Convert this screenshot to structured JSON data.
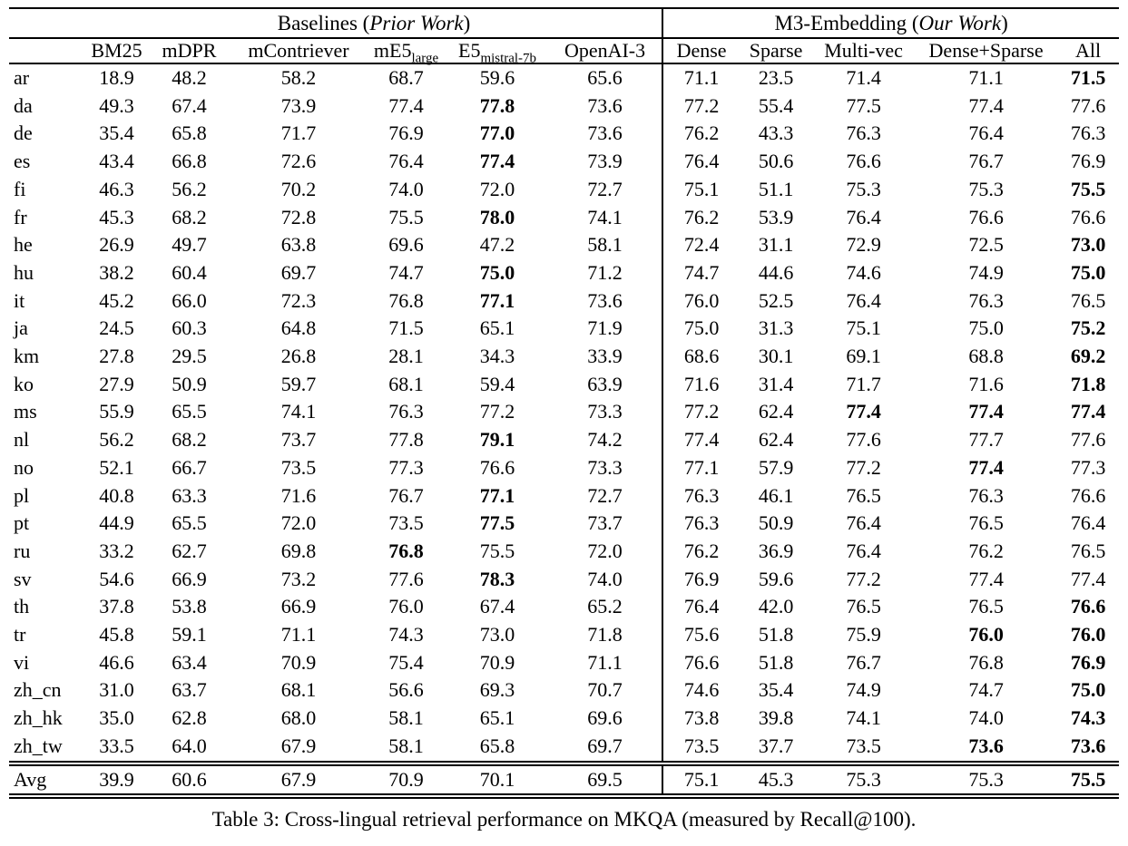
{
  "caption": "Table 3: Cross-lingual retrieval performance on MKQA (measured by Recall@100).",
  "table": {
    "group_headers": [
      {
        "prefix": "Baselines (",
        "italic": "Prior Work",
        "suffix": ")"
      },
      {
        "prefix": "M3-Embedding (",
        "italic": "Our Work",
        "suffix": ")"
      }
    ],
    "columns": [
      {
        "label": "BM25"
      },
      {
        "label": "mDPR"
      },
      {
        "label": "mContriever"
      },
      {
        "label": "mE5",
        "sub": "large"
      },
      {
        "label": "E5",
        "sub": "mistral-7b"
      },
      {
        "label": "OpenAI-3"
      },
      {
        "label": "Dense"
      },
      {
        "label": "Sparse"
      },
      {
        "label": "Multi-vec"
      },
      {
        "label": "Dense+Sparse"
      },
      {
        "label": "All"
      }
    ],
    "rows": [
      {
        "lang": "ar",
        "values": [
          "18.9",
          "48.2",
          "58.2",
          "68.7",
          "59.6",
          "65.6",
          "71.1",
          "23.5",
          "71.4",
          "71.1",
          "71.5"
        ],
        "bold": [
          10
        ]
      },
      {
        "lang": "da",
        "values": [
          "49.3",
          "67.4",
          "73.9",
          "77.4",
          "77.8",
          "73.6",
          "77.2",
          "55.4",
          "77.5",
          "77.4",
          "77.6"
        ],
        "bold": [
          4
        ]
      },
      {
        "lang": "de",
        "values": [
          "35.4",
          "65.8",
          "71.7",
          "76.9",
          "77.0",
          "73.6",
          "76.2",
          "43.3",
          "76.3",
          "76.4",
          "76.3"
        ],
        "bold": [
          4
        ]
      },
      {
        "lang": "es",
        "values": [
          "43.4",
          "66.8",
          "72.6",
          "76.4",
          "77.4",
          "73.9",
          "76.4",
          "50.6",
          "76.6",
          "76.7",
          "76.9"
        ],
        "bold": [
          4
        ]
      },
      {
        "lang": "fi",
        "values": [
          "46.3",
          "56.2",
          "70.2",
          "74.0",
          "72.0",
          "72.7",
          "75.1",
          "51.1",
          "75.3",
          "75.3",
          "75.5"
        ],
        "bold": [
          10
        ]
      },
      {
        "lang": "fr",
        "values": [
          "45.3",
          "68.2",
          "72.8",
          "75.5",
          "78.0",
          "74.1",
          "76.2",
          "53.9",
          "76.4",
          "76.6",
          "76.6"
        ],
        "bold": [
          4
        ]
      },
      {
        "lang": "he",
        "values": [
          "26.9",
          "49.7",
          "63.8",
          "69.6",
          "47.2",
          "58.1",
          "72.4",
          "31.1",
          "72.9",
          "72.5",
          "73.0"
        ],
        "bold": [
          10
        ]
      },
      {
        "lang": "hu",
        "values": [
          "38.2",
          "60.4",
          "69.7",
          "74.7",
          "75.0",
          "71.2",
          "74.7",
          "44.6",
          "74.6",
          "74.9",
          "75.0"
        ],
        "bold": [
          4,
          10
        ]
      },
      {
        "lang": "it",
        "values": [
          "45.2",
          "66.0",
          "72.3",
          "76.8",
          "77.1",
          "73.6",
          "76.0",
          "52.5",
          "76.4",
          "76.3",
          "76.5"
        ],
        "bold": [
          4
        ]
      },
      {
        "lang": "ja",
        "values": [
          "24.5",
          "60.3",
          "64.8",
          "71.5",
          "65.1",
          "71.9",
          "75.0",
          "31.3",
          "75.1",
          "75.0",
          "75.2"
        ],
        "bold": [
          10
        ]
      },
      {
        "lang": "km",
        "values": [
          "27.8",
          "29.5",
          "26.8",
          "28.1",
          "34.3",
          "33.9",
          "68.6",
          "30.1",
          "69.1",
          "68.8",
          "69.2"
        ],
        "bold": [
          10
        ]
      },
      {
        "lang": "ko",
        "values": [
          "27.9",
          "50.9",
          "59.7",
          "68.1",
          "59.4",
          "63.9",
          "71.6",
          "31.4",
          "71.7",
          "71.6",
          "71.8"
        ],
        "bold": [
          10
        ]
      },
      {
        "lang": "ms",
        "values": [
          "55.9",
          "65.5",
          "74.1",
          "76.3",
          "77.2",
          "73.3",
          "77.2",
          "62.4",
          "77.4",
          "77.4",
          "77.4"
        ],
        "bold": [
          8,
          9,
          10
        ]
      },
      {
        "lang": "nl",
        "values": [
          "56.2",
          "68.2",
          "73.7",
          "77.8",
          "79.1",
          "74.2",
          "77.4",
          "62.4",
          "77.6",
          "77.7",
          "77.6"
        ],
        "bold": [
          4
        ]
      },
      {
        "lang": "no",
        "values": [
          "52.1",
          "66.7",
          "73.5",
          "77.3",
          "76.6",
          "73.3",
          "77.1",
          "57.9",
          "77.2",
          "77.4",
          "77.3"
        ],
        "bold": [
          9
        ]
      },
      {
        "lang": "pl",
        "values": [
          "40.8",
          "63.3",
          "71.6",
          "76.7",
          "77.1",
          "72.7",
          "76.3",
          "46.1",
          "76.5",
          "76.3",
          "76.6"
        ],
        "bold": [
          4
        ]
      },
      {
        "lang": "pt",
        "values": [
          "44.9",
          "65.5",
          "72.0",
          "73.5",
          "77.5",
          "73.7",
          "76.3",
          "50.9",
          "76.4",
          "76.5",
          "76.4"
        ],
        "bold": [
          4
        ]
      },
      {
        "lang": "ru",
        "values": [
          "33.2",
          "62.7",
          "69.8",
          "76.8",
          "75.5",
          "72.0",
          "76.2",
          "36.9",
          "76.4",
          "76.2",
          "76.5"
        ],
        "bold": [
          3
        ]
      },
      {
        "lang": "sv",
        "values": [
          "54.6",
          "66.9",
          "73.2",
          "77.6",
          "78.3",
          "74.0",
          "76.9",
          "59.6",
          "77.2",
          "77.4",
          "77.4"
        ],
        "bold": [
          4
        ]
      },
      {
        "lang": "th",
        "values": [
          "37.8",
          "53.8",
          "66.9",
          "76.0",
          "67.4",
          "65.2",
          "76.4",
          "42.0",
          "76.5",
          "76.5",
          "76.6"
        ],
        "bold": [
          10
        ]
      },
      {
        "lang": "tr",
        "values": [
          "45.8",
          "59.1",
          "71.1",
          "74.3",
          "73.0",
          "71.8",
          "75.6",
          "51.8",
          "75.9",
          "76.0",
          "76.0"
        ],
        "bold": [
          9,
          10
        ]
      },
      {
        "lang": "vi",
        "values": [
          "46.6",
          "63.4",
          "70.9",
          "75.4",
          "70.9",
          "71.1",
          "76.6",
          "51.8",
          "76.7",
          "76.8",
          "76.9"
        ],
        "bold": [
          10
        ]
      },
      {
        "lang": "zh_cn",
        "values": [
          "31.0",
          "63.7",
          "68.1",
          "56.6",
          "69.3",
          "70.7",
          "74.6",
          "35.4",
          "74.9",
          "74.7",
          "75.0"
        ],
        "bold": [
          10
        ]
      },
      {
        "lang": "zh_hk",
        "values": [
          "35.0",
          "62.8",
          "68.0",
          "58.1",
          "65.1",
          "69.6",
          "73.8",
          "39.8",
          "74.1",
          "74.0",
          "74.3"
        ],
        "bold": [
          10
        ]
      },
      {
        "lang": "zh_tw",
        "values": [
          "33.5",
          "64.0",
          "67.9",
          "58.1",
          "65.8",
          "69.7",
          "73.5",
          "37.7",
          "73.5",
          "73.6",
          "73.6"
        ],
        "bold": [
          9,
          10
        ]
      },
      {
        "lang": "Avg",
        "values": [
          "39.9",
          "60.6",
          "67.9",
          "70.9",
          "70.1",
          "69.5",
          "75.1",
          "45.3",
          "75.3",
          "75.3",
          "75.5"
        ],
        "bold": [
          10
        ],
        "is_avg": true
      }
    ]
  }
}
